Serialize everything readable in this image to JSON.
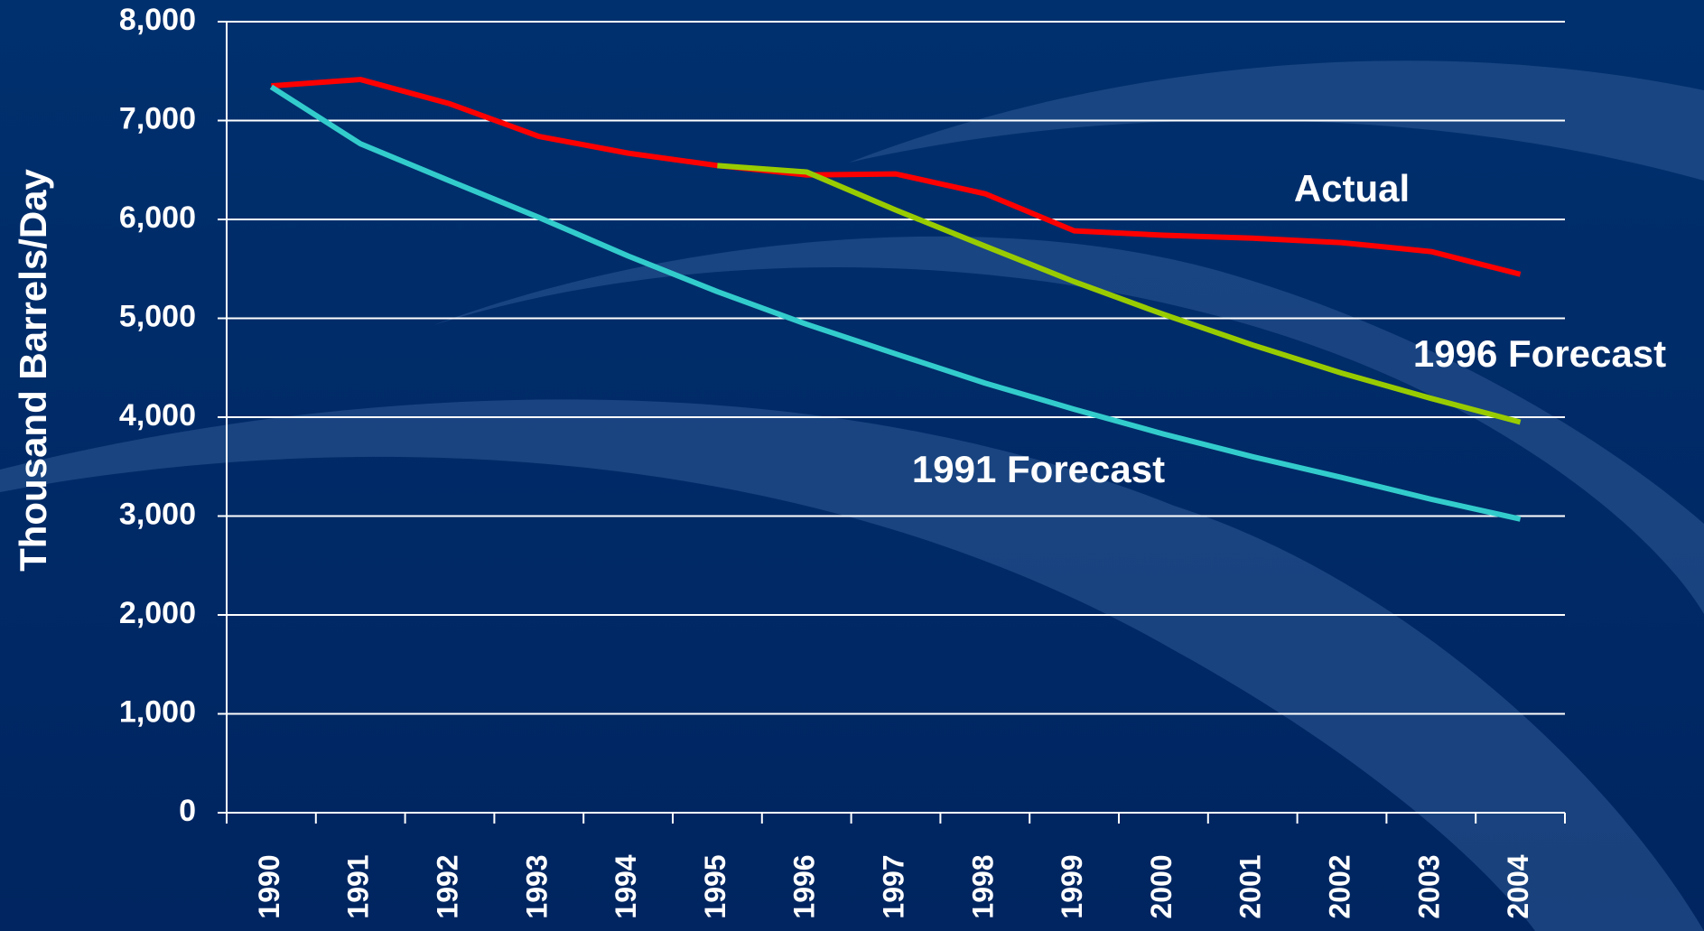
{
  "chart_data": {
    "type": "line",
    "y_label": "Thousand Barrels/Day",
    "categories": [
      "1990",
      "1991",
      "1992",
      "1993",
      "1994",
      "1995",
      "1996",
      "1997",
      "1998",
      "1999",
      "2000",
      "2001",
      "2002",
      "2003",
      "2004"
    ],
    "series": [
      {
        "name": "Actual",
        "color": "#ff0000",
        "values": [
          7350,
          7415,
          7170,
          6840,
          6670,
          6545,
          6450,
          6460,
          6260,
          5885,
          5840,
          5810,
          5765,
          5675,
          5445
        ]
      },
      {
        "name": "1996 Forecast",
        "color": "#99cc00",
        "values": [
          null,
          null,
          null,
          null,
          null,
          6545,
          6480,
          6095,
          5730,
          5370,
          5040,
          4730,
          4445,
          4190,
          3950
        ]
      },
      {
        "name": "1991 Forecast",
        "color": "#33cccc",
        "values": [
          7340,
          6765,
          6390,
          6020,
          5630,
          5270,
          4940,
          4640,
          4345,
          4080,
          3830,
          3600,
          3390,
          3170,
          2970
        ]
      }
    ],
    "ylim": [
      0,
      8000
    ],
    "yticks": [
      0,
      {
        "value": 1000,
        "label": "1,000"
      },
      {
        "value": 2000,
        "label": "2,000"
      },
      {
        "value": 3000,
        "label": "3,000"
      },
      {
        "value": 4000,
        "label": "4,000"
      },
      {
        "value": 5000,
        "label": "5,000"
      },
      {
        "value": 6000,
        "label": "6,000"
      },
      {
        "value": 7000,
        "label": "7,000"
      },
      {
        "value": 8000,
        "label": "8,000"
      }
    ],
    "grid": true
  }
}
